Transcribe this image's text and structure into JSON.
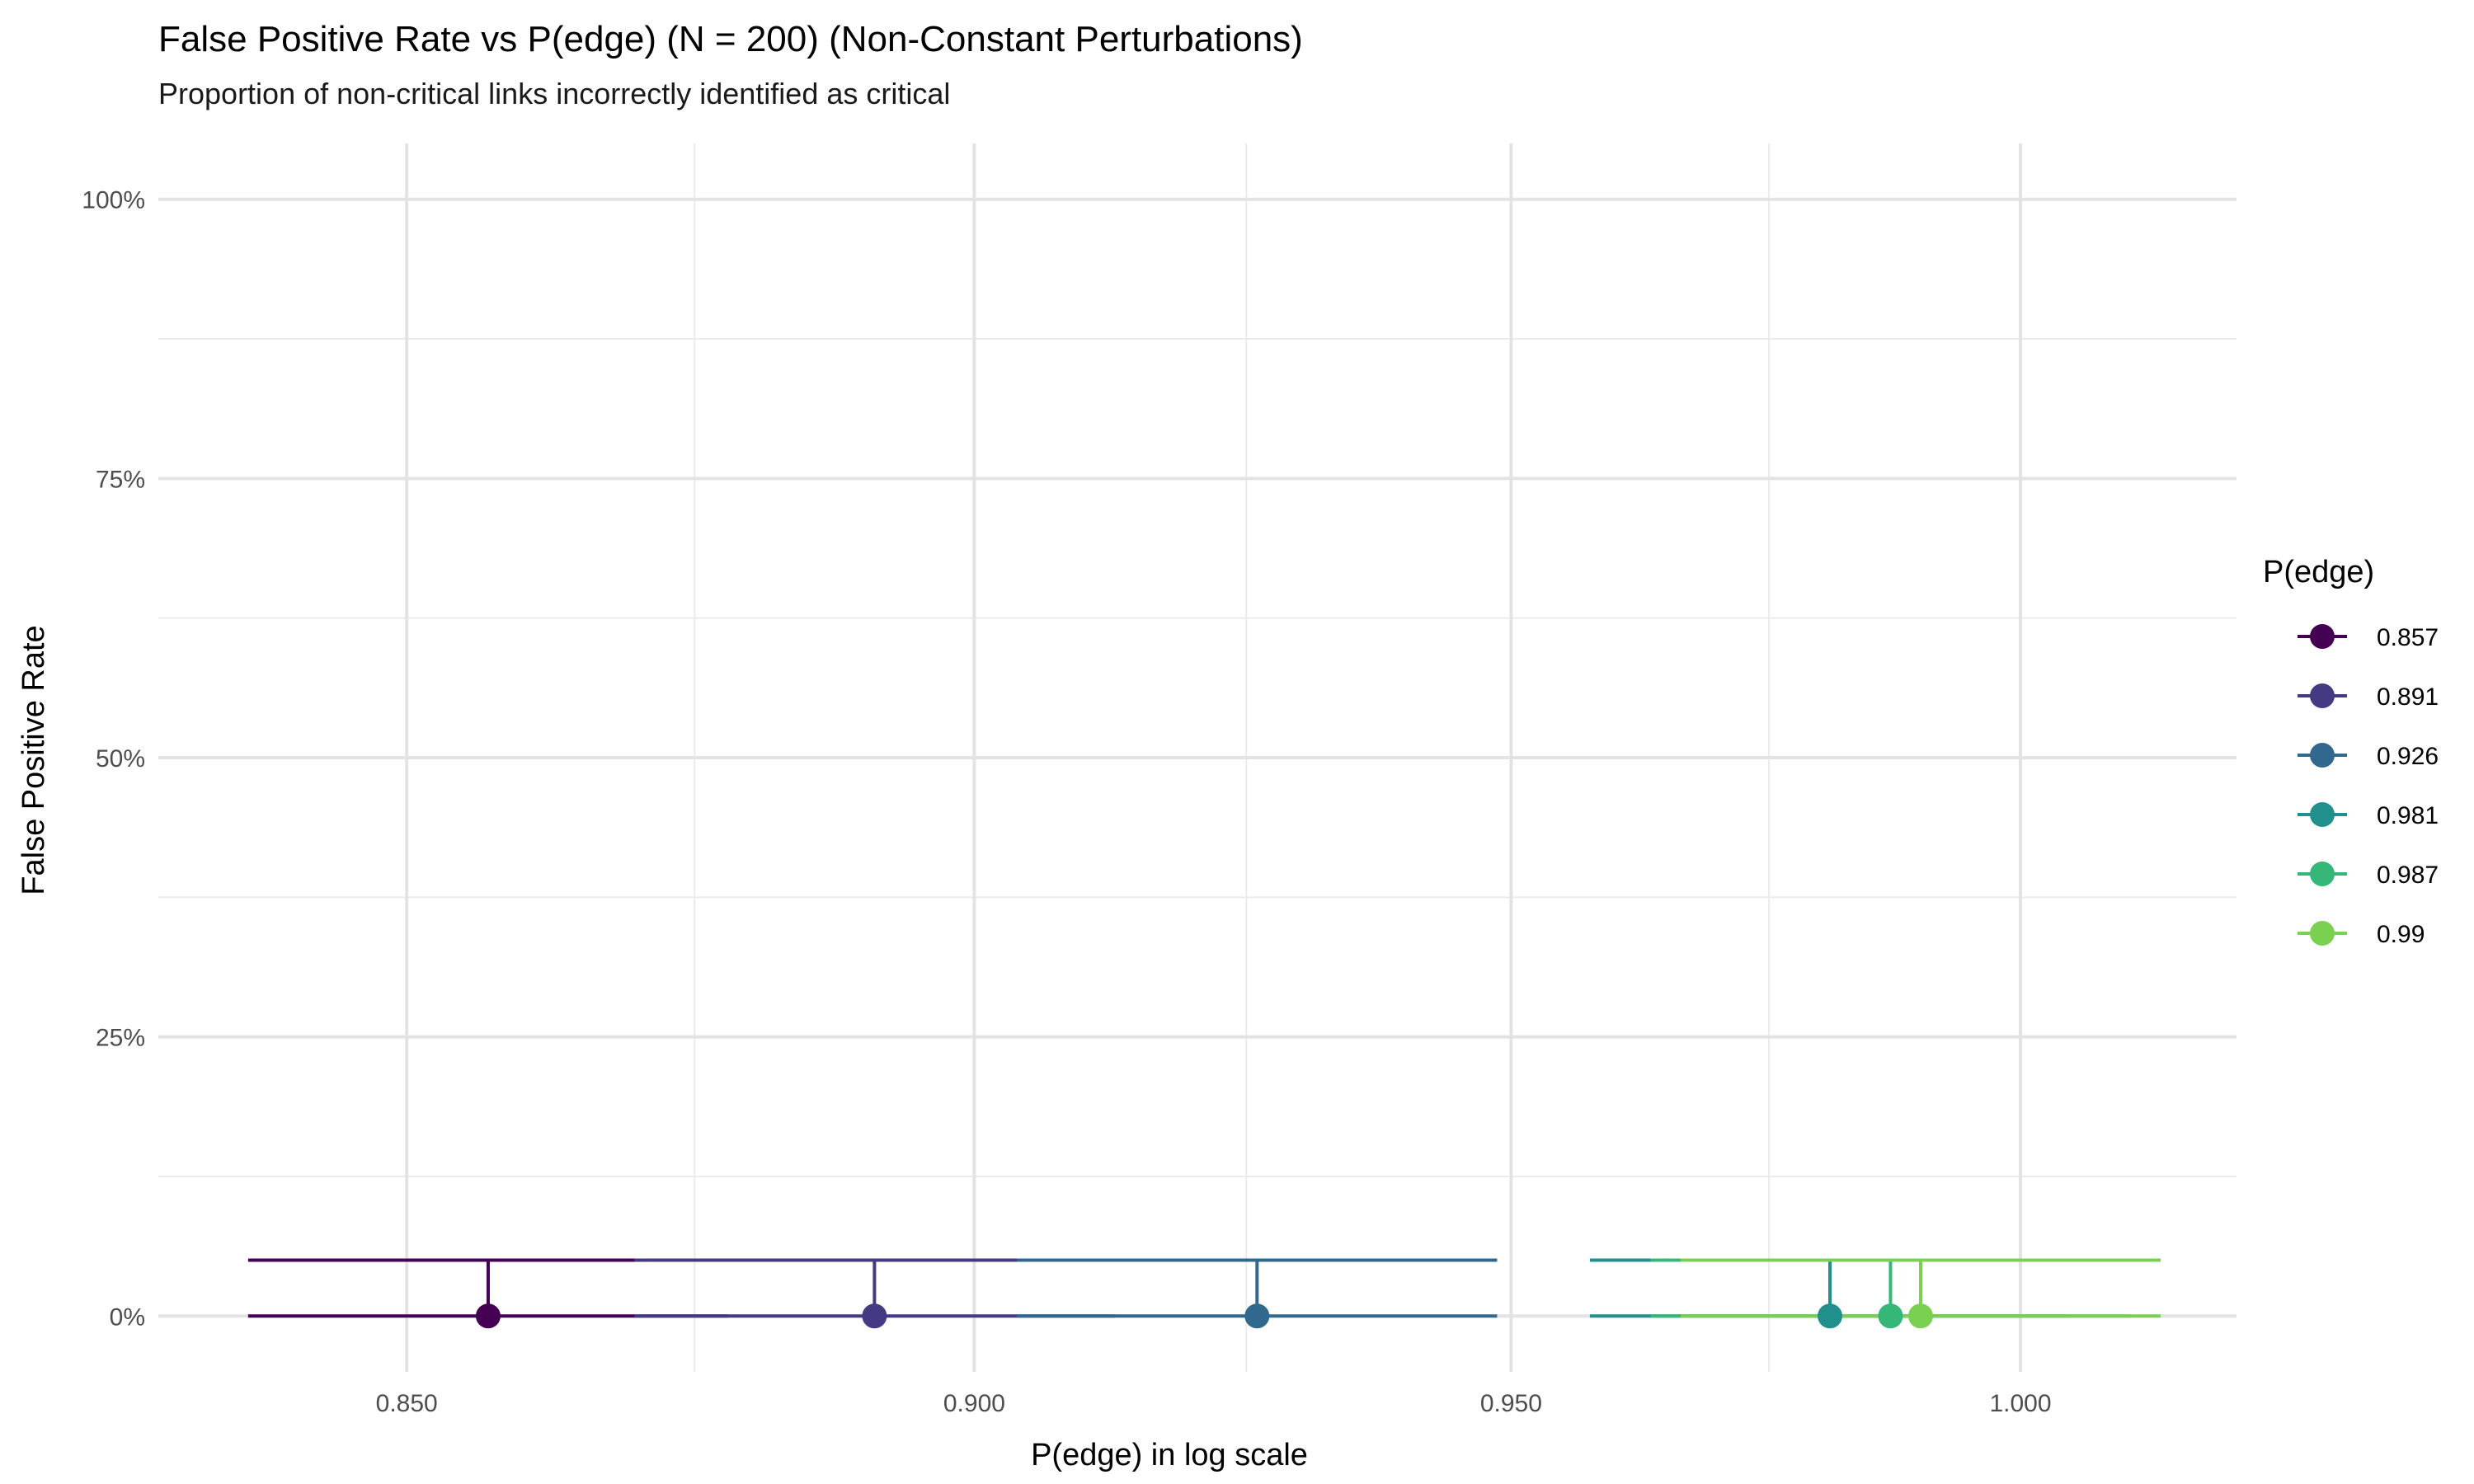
{
  "chart_data": {
    "type": "scatter",
    "title": "False Positive Rate vs P(edge) (N = 200) (Non-Constant Perturbations)",
    "subtitle": "Proportion of non-critical links incorrectly identified as critical",
    "xlabel": "P(edge) in log scale",
    "ylabel": "False Positive Rate",
    "x_scale": "log",
    "xlim": [
      0.829,
      1.022
    ],
    "ylim": [
      -0.05,
      1.05
    ],
    "x_ticks": [
      0.85,
      0.9,
      0.95,
      1.0
    ],
    "x_tick_labels": [
      "0.850",
      "0.900",
      "0.950",
      "1.000"
    ],
    "y_ticks": [
      0,
      0.25,
      0.5,
      0.75,
      1.0
    ],
    "y_tick_labels": [
      "0%",
      "25%",
      "50%",
      "75%",
      "100%"
    ],
    "grid": true,
    "legend": {
      "title": "P(edge)",
      "position": "right"
    },
    "error_bars": {
      "lower": 0,
      "upper": 0.05,
      "cap_half_width_log10": 0.0105
    },
    "series": [
      {
        "name": "0.857",
        "x": 0.857,
        "y": 0,
        "color": "#440154"
      },
      {
        "name": "0.891",
        "x": 0.891,
        "y": 0,
        "color": "#443A83"
      },
      {
        "name": "0.926",
        "x": 0.926,
        "y": 0,
        "color": "#31688E"
      },
      {
        "name": "0.981",
        "x": 0.981,
        "y": 0,
        "color": "#21908C"
      },
      {
        "name": "0.987",
        "x": 0.987,
        "y": 0,
        "color": "#35B779"
      },
      {
        "name": "0.99",
        "x": 0.99,
        "y": 0,
        "color": "#7AD151"
      }
    ]
  }
}
